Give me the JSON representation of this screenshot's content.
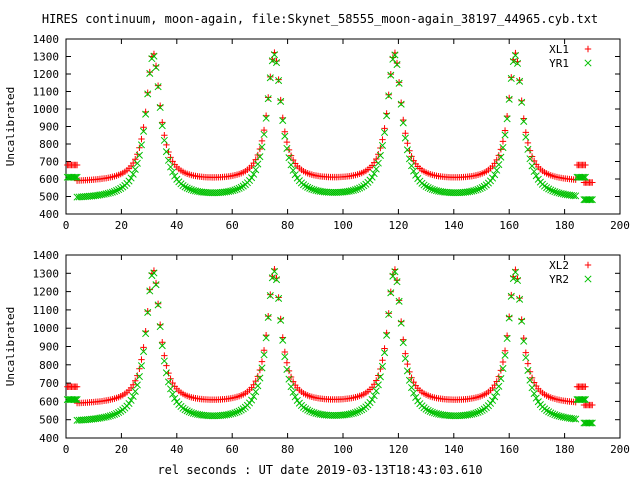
{
  "chart_data": {
    "title": "HIRES continuum, moon-again, file:Skynet_58555_moon-again_38197_44965.cyb.txt",
    "xlabel": "rel seconds : UT date 2019-03-13T18:43:03.610",
    "type": "scatter",
    "colors": {
      "first": "#ff0000",
      "second": "#00c000"
    },
    "panels": [
      {
        "ylabel": "Uncalibrated",
        "xlim": [
          0,
          200
        ],
        "ylim": [
          400,
          1400
        ],
        "xticks": [
          0,
          20,
          40,
          60,
          80,
          100,
          120,
          140,
          160,
          180,
          200
        ],
        "yticks": [
          400,
          500,
          600,
          700,
          800,
          900,
          1000,
          1100,
          1200,
          1300,
          1400
        ],
        "series": [
          {
            "name": "XL1",
            "marker": "plus",
            "cal_x": [
              0,
              4,
              184.5,
              189.5
            ],
            "cal_y": 680,
            "cal_end_y": 580,
            "x_range": [
              4,
              184
            ],
            "x_step": 0.75,
            "baseline": 580,
            "peak_top": 1315,
            "peaks": [
              31.5,
              75.2,
              118.6,
              162.2
            ],
            "peak_width": 3.0
          },
          {
            "name": "YR1",
            "marker": "cross",
            "cal_x": [
              0,
              4,
              184.5,
              189.5
            ],
            "cal_y": 610,
            "cal_end_y": 482,
            "x_range": [
              4,
              184
            ],
            "x_step": 0.75,
            "baseline": 482,
            "peak_top": 1300,
            "peaks": [
              31.5,
              75.2,
              118.6,
              162.2
            ],
            "peak_width": 3.3
          }
        ]
      },
      {
        "ylabel": "Uncalibrated",
        "xlim": [
          0,
          200
        ],
        "ylim": [
          400,
          1400
        ],
        "xticks": [
          0,
          20,
          40,
          60,
          80,
          100,
          120,
          140,
          160,
          180,
          200
        ],
        "yticks": [
          400,
          500,
          600,
          700,
          800,
          900,
          1000,
          1100,
          1200,
          1300,
          1400
        ],
        "series": [
          {
            "name": "XL2",
            "marker": "plus",
            "cal_x": [
              0,
              4,
              184.5,
              189.5
            ],
            "cal_y": 680,
            "cal_end_y": 580,
            "x_range": [
              4,
              184
            ],
            "x_step": 0.75,
            "baseline": 580,
            "peak_top": 1315,
            "peaks": [
              31.5,
              75.2,
              118.6,
              162.2
            ],
            "peak_width": 3.0
          },
          {
            "name": "YR2",
            "marker": "cross",
            "cal_x": [
              0,
              4,
              184.5,
              189.5
            ],
            "cal_y": 610,
            "cal_end_y": 482,
            "x_range": [
              4,
              184
            ],
            "x_step": 0.75,
            "baseline": 482,
            "peak_top": 1300,
            "peaks": [
              31.5,
              75.2,
              118.6,
              162.2
            ],
            "peak_width": 3.3
          }
        ]
      }
    ]
  }
}
